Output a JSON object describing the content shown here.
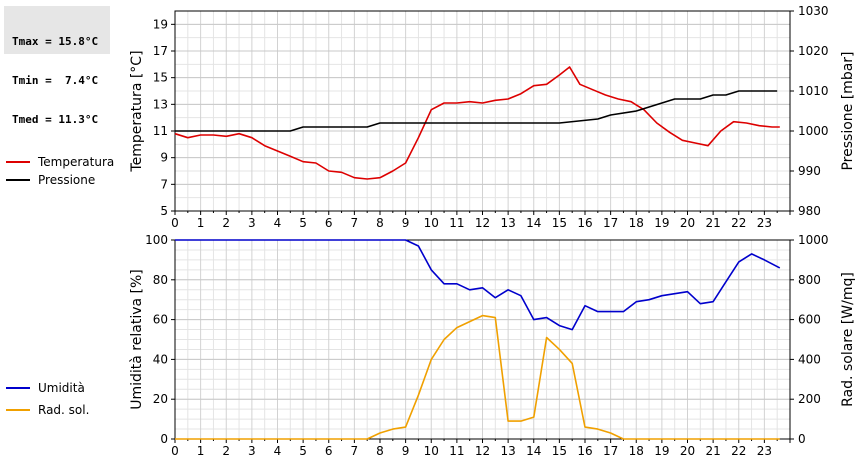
{
  "stats": {
    "tmax": "Tmax = 15.8°C",
    "tmin": "Tmin =  7.4°C",
    "tmed": "Tmed = 11.3°C"
  },
  "chart_data": [
    {
      "type": "line",
      "ylabel": "Temperatura [°C]",
      "y2label": "Pressione [mbar]",
      "ylim": [
        5,
        20
      ],
      "y2lim": [
        980,
        1030
      ],
      "yticks": [
        5,
        7,
        9,
        11,
        13,
        15,
        17,
        19
      ],
      "y2ticks": [
        980,
        990,
        1000,
        1010,
        1020,
        1030
      ],
      "xlim": [
        0,
        24
      ],
      "xticks": [
        "0",
        "1",
        "2",
        "3",
        "4",
        "5",
        "6",
        "7",
        "8",
        "9",
        "10",
        "11",
        "12",
        "13",
        "14",
        "15",
        "16",
        "17",
        "18",
        "19",
        "20",
        "21",
        "22",
        "23"
      ],
      "grid": true,
      "legend": "left",
      "series": [
        {
          "name": "Temperatura",
          "axis": "left",
          "color": "#dd0000",
          "x": [
            0,
            0.5,
            1,
            1.5,
            2,
            2.5,
            3,
            3.5,
            4,
            4.5,
            5,
            5.5,
            6,
            6.5,
            7,
            7.5,
            8,
            8.5,
            9,
            9.5,
            10,
            10.5,
            11,
            11.5,
            12,
            12.5,
            13,
            13.5,
            14,
            14.5,
            15,
            15.4,
            15.8,
            16.3,
            16.8,
            17.3,
            17.8,
            18.3,
            18.8,
            19.3,
            19.8,
            20.3,
            20.8,
            21.3,
            21.8,
            22.3,
            22.8,
            23.3,
            23.6
          ],
          "y": [
            10.8,
            10.5,
            10.7,
            10.7,
            10.6,
            10.8,
            10.5,
            9.9,
            9.5,
            9.1,
            8.7,
            8.6,
            8.0,
            7.9,
            7.5,
            7.4,
            7.5,
            8.0,
            8.6,
            10.5,
            12.6,
            13.1,
            13.1,
            13.2,
            13.1,
            13.3,
            13.4,
            13.8,
            14.4,
            14.5,
            15.2,
            15.8,
            14.5,
            14.1,
            13.7,
            13.4,
            13.2,
            12.6,
            11.6,
            10.9,
            10.3,
            10.1,
            9.9,
            11.0,
            11.7,
            11.6,
            11.4,
            11.3,
            11.3
          ]
        },
        {
          "name": "Pressione",
          "axis": "right",
          "color": "#000000",
          "x": [
            0,
            4.5,
            5,
            7.5,
            8,
            15,
            16.5,
            17,
            18,
            18.5,
            19,
            19.5,
            20,
            20.5,
            21,
            21.5,
            22,
            23.5
          ],
          "y": [
            1000,
            1000,
            1001,
            1001,
            1002,
            1002,
            1003,
            1004,
            1005,
            1006,
            1007,
            1008,
            1008,
            1008,
            1009,
            1009,
            1010,
            1010
          ]
        }
      ]
    },
    {
      "type": "line",
      "ylabel": "Umidità relativa [%]",
      "y2label": "Rad. solare [W/mq]",
      "ylim": [
        0,
        100
      ],
      "y2lim": [
        0,
        1000
      ],
      "yticks": [
        0,
        20,
        40,
        60,
        80,
        100
      ],
      "y2ticks": [
        0,
        200,
        400,
        600,
        800,
        1000
      ],
      "xlim": [
        0,
        24
      ],
      "xticks": [
        "0",
        "1",
        "2",
        "3",
        "4",
        "5",
        "6",
        "7",
        "8",
        "9",
        "10",
        "11",
        "12",
        "13",
        "14",
        "15",
        "16",
        "17",
        "18",
        "19",
        "20",
        "21",
        "22",
        "23"
      ],
      "grid": true,
      "legend": "left",
      "series": [
        {
          "name": "Umidità",
          "axis": "left",
          "color": "#0000cc",
          "x": [
            0,
            9,
            9.5,
            10,
            10.5,
            11,
            11.5,
            12,
            12.5,
            13,
            13.5,
            14,
            14.5,
            15,
            15.5,
            16,
            16.5,
            17,
            17.5,
            18,
            18.5,
            19,
            19.5,
            20,
            20.5,
            21,
            21.5,
            22,
            22.5,
            23,
            23.6
          ],
          "y": [
            100,
            100,
            97,
            85,
            78,
            78,
            75,
            76,
            71,
            75,
            72,
            60,
            61,
            57,
            55,
            67,
            64,
            64,
            64,
            69,
            70,
            72,
            73,
            74,
            68,
            69,
            79,
            89,
            93,
            90,
            86
          ]
        },
        {
          "name": "Rad. sol.",
          "axis": "right",
          "color": "#f0a000",
          "x": [
            0,
            7.5,
            8,
            8.5,
            9,
            9.5,
            10,
            10.5,
            11,
            11.5,
            12,
            12.5,
            13,
            13.5,
            14,
            14.5,
            15,
            15.5,
            16,
            16.5,
            17,
            17.5,
            23.6
          ],
          "y": [
            0,
            0,
            30,
            50,
            60,
            220,
            400,
            500,
            560,
            590,
            620,
            610,
            90,
            90,
            110,
            510,
            450,
            380,
            60,
            50,
            30,
            0,
            0
          ]
        }
      ]
    }
  ]
}
